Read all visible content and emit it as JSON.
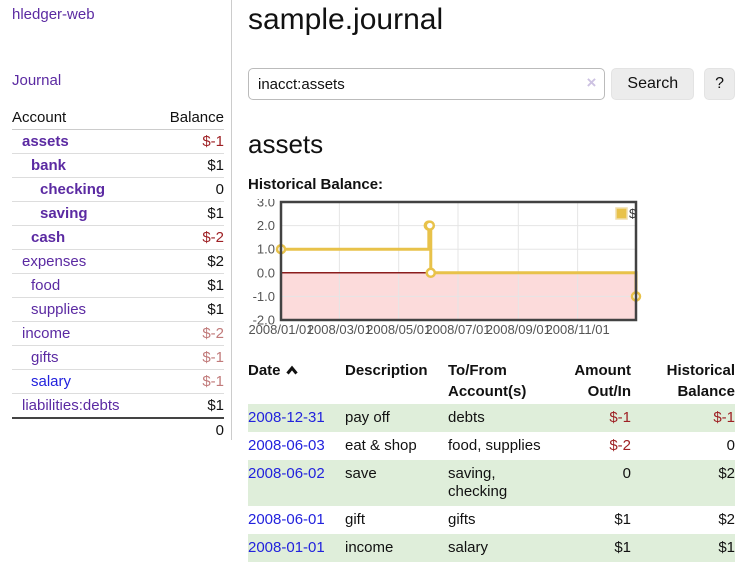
{
  "app": {
    "title": "hledger-web"
  },
  "sidebar": {
    "journal_link": "Journal",
    "accounts_table": {
      "headers": {
        "account": "Account",
        "balance": "Balance"
      },
      "rows": [
        {
          "name": "assets",
          "indent": 1,
          "bold": true,
          "balance": "$-1",
          "balance_style": "neg-strong",
          "link_color": "purple"
        },
        {
          "name": "bank",
          "indent": 2,
          "bold": true,
          "balance": "$1",
          "balance_style": "normal",
          "link_color": "purple"
        },
        {
          "name": "checking",
          "indent": 3,
          "bold": true,
          "balance": "0",
          "balance_style": "normal",
          "link_color": "purple"
        },
        {
          "name": "saving",
          "indent": 3,
          "bold": true,
          "balance": "$1",
          "balance_style": "normal",
          "link_color": "purple"
        },
        {
          "name": "cash",
          "indent": 2,
          "bold": true,
          "balance": "$-2",
          "balance_style": "neg-strong",
          "link_color": "purple"
        },
        {
          "name": "expenses",
          "indent": 1,
          "bold": false,
          "balance": "$2",
          "balance_style": "normal",
          "link_color": "purple"
        },
        {
          "name": "food",
          "indent": 2,
          "bold": false,
          "balance": "$1",
          "balance_style": "normal",
          "link_color": "purple"
        },
        {
          "name": "supplies",
          "indent": 2,
          "bold": false,
          "balance": "$1",
          "balance_style": "normal",
          "link_color": "purple"
        },
        {
          "name": "income",
          "indent": 1,
          "bold": false,
          "balance": "$-2",
          "balance_style": "neg-muted",
          "link_color": "purple"
        },
        {
          "name": "gifts",
          "indent": 2,
          "bold": false,
          "balance": "$-1",
          "balance_style": "neg-muted",
          "link_color": "purple"
        },
        {
          "name": "salary",
          "indent": 2,
          "bold": false,
          "balance": "$-1",
          "balance_style": "neg-muted",
          "link_color": "blue"
        },
        {
          "name": "liabilities:debts",
          "indent": 1,
          "bold": false,
          "balance": "$1",
          "balance_style": "normal",
          "link_color": "purple"
        }
      ],
      "total": "0"
    }
  },
  "header": {
    "title": "sample.journal"
  },
  "search": {
    "value": "inacct:assets",
    "clear_icon": "×",
    "button_label": "Search",
    "help_label": "?"
  },
  "account_page": {
    "heading": "assets",
    "chart_title": "Historical Balance:"
  },
  "chart_data": {
    "type": "line",
    "style": "step-after",
    "title": "Historical Balance",
    "legend": [
      {
        "label": "$",
        "color": "#e8c24a"
      }
    ],
    "legend_position": "top-right",
    "grid": true,
    "x_range": [
      "2008-01-01",
      "2008-12-31"
    ],
    "ylim": [
      -2.0,
      3.0
    ],
    "y_ticks": [
      3.0,
      2.0,
      1.0,
      0.0,
      -1.0,
      -2.0
    ],
    "x_ticks": [
      {
        "label": "2008/01/01",
        "date": "2008-01-01"
      },
      {
        "label": "2008/03/01",
        "date": "2008-03-01"
      },
      {
        "label": "2008/05/01",
        "date": "2008-05-01"
      },
      {
        "label": "2008/07/01",
        "date": "2008-07-01"
      },
      {
        "label": "2008/09/01",
        "date": "2008-09-01"
      },
      {
        "label": "2008/11/01",
        "date": "2008-11-01"
      }
    ],
    "points": [
      {
        "date": "2008-01-01",
        "value": 1
      },
      {
        "date": "2008-06-01",
        "value": 2
      },
      {
        "date": "2008-06-02",
        "value": 2
      },
      {
        "date": "2008-06-03",
        "value": 0
      },
      {
        "date": "2008-12-31",
        "value": -1
      }
    ],
    "colors": {
      "line": "#e8c24a",
      "marker_fill": "#ffffff",
      "negative_region": "#fcdbdb",
      "zero_line": "#8b1d1d",
      "grid": "#e5e5e5",
      "border": "#424242",
      "tick_text": "#545454",
      "legend_box_border": "#f0deab"
    }
  },
  "register": {
    "columns": [
      {
        "label": "Date",
        "sort": "asc"
      },
      {
        "label": "Description"
      },
      {
        "label": "To/From Account(s)"
      },
      {
        "label": "Amount Out/In"
      },
      {
        "label": "Historical Balance"
      }
    ],
    "rows": [
      {
        "date": "2008-12-31",
        "description": "pay off",
        "accounts": "debts",
        "amount": "$-1",
        "amount_negative": true,
        "balance": "$-1",
        "balance_negative": true,
        "striped": true
      },
      {
        "date": "2008-06-03",
        "description": "eat & shop",
        "accounts": "food, supplies",
        "amount": "$-2",
        "amount_negative": true,
        "balance": "0",
        "balance_negative": false,
        "striped": false
      },
      {
        "date": "2008-06-02",
        "description": "save",
        "accounts": "saving, checking",
        "amount": "0",
        "amount_negative": false,
        "balance": "$2",
        "balance_negative": false,
        "striped": true
      },
      {
        "date": "2008-06-01",
        "description": "gift",
        "accounts": "gifts",
        "amount": "$1",
        "amount_negative": false,
        "balance": "$2",
        "balance_negative": false,
        "striped": false
      },
      {
        "date": "2008-01-01",
        "description": "income",
        "accounts": "salary",
        "amount": "$1",
        "amount_negative": false,
        "balance": "$1",
        "balance_negative": false,
        "striped": true
      }
    ]
  }
}
